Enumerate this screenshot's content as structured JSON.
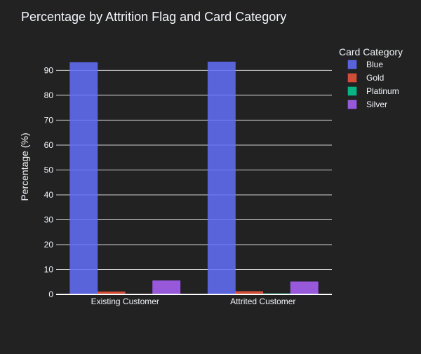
{
  "chart_data": {
    "type": "bar",
    "title": "Percentage by Attrition Flag and Card Category",
    "xlabel": "",
    "ylabel": "Percentage (%)",
    "categories": [
      "Existing Customer",
      "Attrited Customer"
    ],
    "series": [
      {
        "name": "Blue",
        "values": [
          93.2,
          93.4
        ],
        "color": "#636efa"
      },
      {
        "name": "Gold",
        "values": [
          1.1,
          1.2
        ],
        "color": "#ef553b"
      },
      {
        "name": "Platinum",
        "values": [
          0.2,
          0.3
        ],
        "color": "#00cc96"
      },
      {
        "name": "Silver",
        "values": [
          5.5,
          5.1
        ],
        "color": "#ab63fa"
      }
    ],
    "ylim": [
      0,
      98
    ],
    "yticks": [
      0,
      10,
      20,
      30,
      40,
      50,
      60,
      70,
      80,
      90
    ],
    "legend": {
      "title": "Card Category",
      "position": "right"
    },
    "grid": true,
    "background": "#222222"
  }
}
